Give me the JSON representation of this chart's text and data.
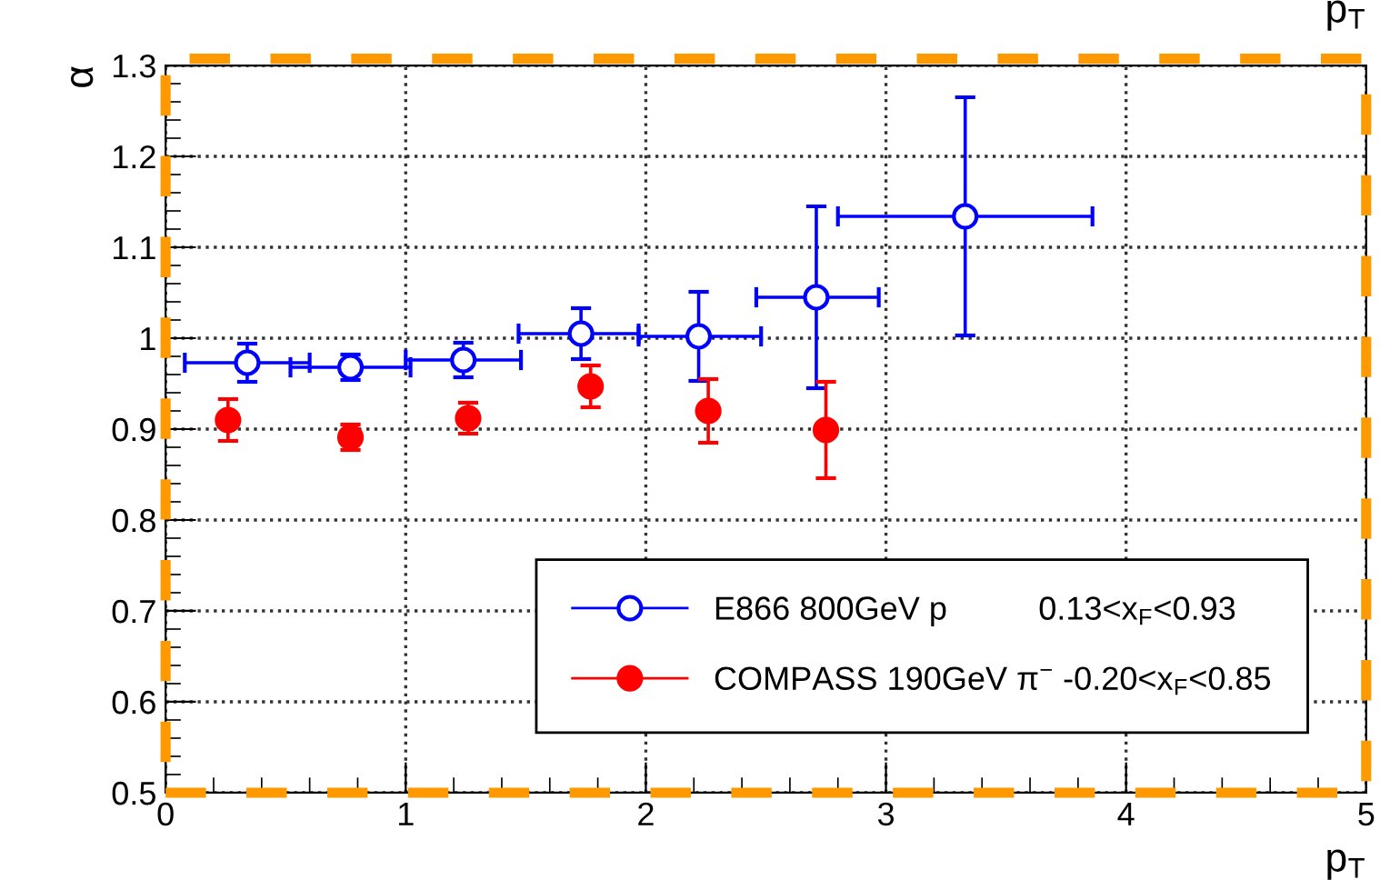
{
  "chart_data": {
    "type": "scatter",
    "xlabel": "p$_{T}$",
    "ylabel": "α",
    "annotations": [
      "p$_{T}$"
    ],
    "xlim": [
      0,
      5
    ],
    "xticks": [
      0,
      1,
      2,
      3,
      4,
      5
    ],
    "ylim": [
      0.5,
      1.3
    ],
    "yticks": [
      0.5,
      0.6,
      0.7,
      0.8,
      0.9,
      1,
      1.1,
      1.2,
      1.3
    ],
    "grid": true,
    "legend": "bottom right",
    "marker": "circle",
    "series": [
      {
        "name": "E866 800GeV p          0.13<x$_{F}$<0.93",
        "color": "#0000ff",
        "x": [
          0.34,
          0.77,
          1.24,
          1.73,
          2.22,
          2.71,
          3.33
        ],
        "values": [
          0.973,
          0.968,
          0.976,
          1.005,
          1.002,
          1.045,
          1.134
        ],
        "errors": [
          0.021,
          0.014,
          0.019,
          0.028,
          0.049,
          0.1,
          0.131
        ],
        "xerrors": [
          [
            0.08,
            0.6
          ],
          [
            0.52,
            1.02
          ],
          [
            1.0,
            1.48
          ],
          [
            1.47,
            1.97
          ],
          [
            1.97,
            2.48
          ],
          [
            2.46,
            2.97
          ],
          [
            2.8,
            3.86
          ]
        ]
      },
      {
        "name": "COMPASS 190GeV π$^{−}$ -0.20<x$_{F}$<0.85",
        "color": "#ff0000",
        "x": [
          0.26,
          0.77,
          1.26,
          1.77,
          2.26,
          2.75
        ],
        "values": [
          0.91,
          0.891,
          0.912,
          0.947,
          0.92,
          0.899
        ],
        "errors": [
          0.023,
          0.014,
          0.017,
          0.023,
          0.035,
          0.053
        ]
      }
    ]
  }
}
